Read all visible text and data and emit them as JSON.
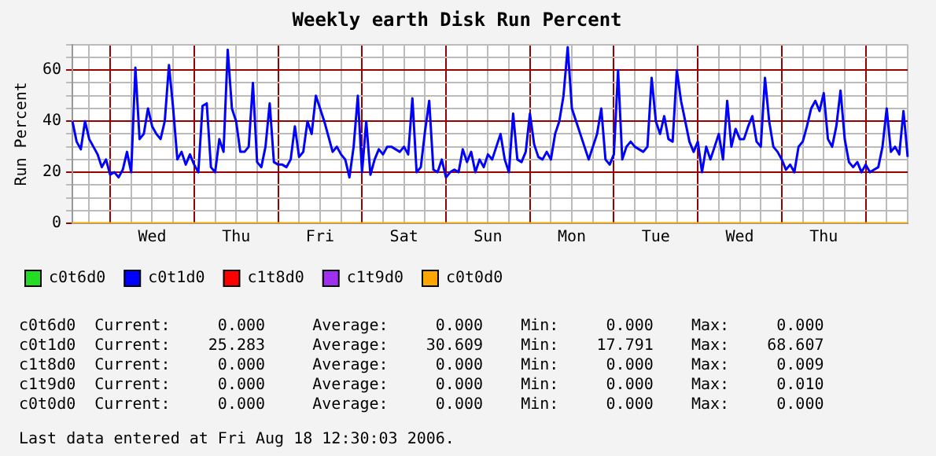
{
  "chart_data": {
    "type": "line",
    "title": "Weekly earth Disk Run Percent",
    "ylabel": "Run Percent",
    "categories": [
      null,
      null,
      null,
      null,
      null,
      null,
      null,
      null,
      null,
      null,
      null,
      null,
      null,
      null,
      null,
      null,
      null,
      null,
      null,
      "Wed",
      null,
      null,
      null,
      null,
      null,
      null,
      null,
      null,
      null,
      null,
      null,
      null,
      null,
      null,
      null,
      null,
      null,
      null,
      null,
      "Thu",
      null,
      null,
      null,
      null,
      null,
      null,
      null,
      null,
      null,
      null,
      null,
      null,
      null,
      null,
      null,
      null,
      null,
      null,
      null,
      "Fri",
      null,
      null,
      null,
      null,
      null,
      null,
      null,
      null,
      null,
      null,
      null,
      null,
      null,
      null,
      null,
      null,
      null,
      null,
      null,
      "Sat",
      null,
      null,
      null,
      null,
      null,
      null,
      null,
      null,
      null,
      null,
      null,
      null,
      null,
      null,
      null,
      null,
      null,
      null,
      null,
      "Sun",
      null,
      null,
      null,
      null,
      null,
      null,
      null,
      null,
      null,
      null,
      null,
      null,
      null,
      null,
      null,
      null,
      null,
      null,
      null,
      "Mon",
      null,
      null,
      null,
      null,
      null,
      null,
      null,
      null,
      null,
      null,
      null,
      null,
      null,
      null,
      null,
      null,
      null,
      null,
      null,
      "Tue",
      null,
      null,
      null,
      null,
      null,
      null,
      null,
      null,
      null,
      null,
      null,
      null,
      null,
      null,
      null,
      null,
      null,
      null,
      null,
      "Wed",
      null,
      null,
      null,
      null,
      null,
      null,
      null,
      null,
      null,
      null,
      null,
      null,
      null,
      null,
      null,
      null,
      null,
      null,
      null,
      "Thu",
      null,
      null,
      null,
      null,
      null,
      null,
      null,
      null,
      null,
      null,
      null,
      null,
      null,
      null,
      null,
      null,
      null,
      null,
      null,
      null
    ],
    "ylim": [
      0,
      70
    ],
    "yticks": [
      0,
      {
        "value": 5,
        "label": null
      },
      {
        "value": 10,
        "label": null
      },
      {
        "value": 15,
        "label": null
      },
      20,
      {
        "value": 25,
        "label": null
      },
      {
        "value": 30,
        "label": null
      },
      {
        "value": 35,
        "label": null
      },
      40,
      {
        "value": 45,
        "label": null
      },
      {
        "value": 50,
        "label": null
      },
      {
        "value": 55,
        "label": null
      },
      60,
      {
        "value": 65,
        "label": null
      },
      {
        "value": 70,
        "label": null
      }
    ],
    "grid": true,
    "legend": "bottom",
    "marker": "none",
    "line_style": "solid",
    "series": [
      {
        "name": "c0t6d0",
        "color": "#22dd22",
        "values": [
          null,
          null,
          null,
          null,
          null,
          null,
          null,
          null,
          null,
          null,
          null,
          null,
          null,
          null,
          null,
          null,
          null,
          null,
          null,
          null,
          null,
          null,
          null,
          null,
          null,
          null,
          null,
          null,
          null,
          null,
          null,
          null,
          null,
          null,
          null,
          null,
          null,
          null,
          null,
          null,
          null,
          null,
          null,
          null,
          null,
          null,
          null,
          null,
          null,
          null,
          null,
          null,
          null,
          null,
          null,
          null,
          null,
          null,
          null,
          null,
          null,
          null,
          null,
          null,
          null,
          null,
          null,
          null,
          null,
          null,
          null,
          null,
          null,
          null,
          null,
          null,
          null,
          null,
          null,
          null,
          null,
          null,
          null,
          null,
          null,
          null,
          null,
          null,
          null,
          null,
          null,
          null,
          null,
          null,
          null,
          null,
          null,
          null,
          null,
          null,
          null,
          null,
          null,
          null,
          null,
          null,
          null,
          null,
          null,
          null,
          null,
          null,
          null,
          null,
          null,
          null,
          null,
          null,
          null,
          null,
          null,
          null,
          null,
          null,
          null,
          null,
          null,
          null,
          null,
          null,
          null,
          null,
          null,
          null,
          null,
          null,
          null,
          null,
          null,
          null,
          null,
          null,
          null,
          null,
          null,
          null,
          null,
          null,
          null,
          null,
          null,
          null,
          null,
          null,
          null,
          null,
          null,
          null,
          null,
          null,
          null,
          null,
          null,
          null,
          null,
          null,
          null,
          null,
          null,
          null,
          null,
          null,
          null,
          null,
          null,
          null,
          null,
          null,
          null,
          null,
          null,
          null,
          null,
          null,
          null,
          null,
          null,
          null,
          null,
          null,
          null,
          null,
          null,
          null,
          null,
          null,
          null,
          null,
          null,
          null
        ]
      },
      {
        "name": "c0t1d0",
        "color": "#0000ff",
        "values": [
          40,
          32,
          29,
          40,
          33,
          30,
          27,
          22,
          25,
          19,
          20,
          18,
          21,
          28,
          20,
          61,
          33,
          35,
          45,
          38,
          35,
          33,
          40,
          62,
          45,
          25,
          28,
          23,
          27,
          23,
          20,
          46,
          47,
          22,
          20,
          33,
          28,
          68,
          45,
          40,
          28,
          28,
          30,
          55,
          24,
          22,
          30,
          47,
          24,
          23,
          23,
          22,
          25,
          38,
          26,
          28,
          40,
          35,
          50,
          45,
          40,
          34,
          28,
          30,
          27,
          25,
          18,
          30,
          50,
          20,
          40,
          19,
          25,
          29,
          27,
          30,
          30,
          29,
          28,
          30,
          27,
          49,
          20,
          22,
          36,
          48,
          21,
          20,
          25,
          18,
          20,
          21,
          20,
          29,
          24,
          28,
          20,
          25,
          22,
          27,
          25,
          30,
          35,
          25,
          20,
          43,
          25,
          24,
          28,
          43,
          31,
          26,
          25,
          28,
          25,
          35,
          40,
          50,
          69,
          45,
          40,
          35,
          30,
          25,
          30,
          35,
          45,
          25,
          23,
          27,
          60,
          25,
          30,
          32,
          30,
          29,
          28,
          30,
          57,
          40,
          35,
          42,
          33,
          32,
          60,
          48,
          40,
          32,
          28,
          32,
          20,
          30,
          25,
          30,
          35,
          25,
          48,
          30,
          37,
          33,
          33,
          38,
          42,
          32,
          30,
          57,
          40,
          30,
          28,
          25,
          21,
          23,
          20,
          30,
          32,
          38,
          45,
          48,
          44,
          51,
          33,
          30,
          38,
          52,
          33,
          24,
          22,
          24,
          20,
          23,
          20,
          21,
          22,
          30,
          45,
          28,
          30,
          27,
          44,
          26
        ]
      },
      {
        "name": "c1t8d0",
        "color": "#ff0000",
        "values": [
          null,
          null,
          null,
          null,
          null,
          null,
          null,
          null,
          null,
          null,
          null,
          null,
          null,
          null,
          null,
          null,
          null,
          null,
          null,
          null,
          null,
          null,
          null,
          null,
          null,
          null,
          null,
          null,
          null,
          null,
          null,
          null,
          null,
          null,
          null,
          null,
          null,
          null,
          null,
          null,
          null,
          null,
          null,
          null,
          null,
          null,
          null,
          null,
          null,
          null,
          null,
          null,
          null,
          null,
          null,
          null,
          null,
          null,
          null,
          null,
          null,
          null,
          null,
          null,
          null,
          null,
          null,
          null,
          null,
          null,
          null,
          null,
          null,
          null,
          null,
          null,
          null,
          null,
          null,
          null,
          null,
          null,
          null,
          null,
          null,
          null,
          null,
          null,
          null,
          null,
          null,
          null,
          null,
          null,
          null,
          null,
          null,
          null,
          null,
          null,
          null,
          null,
          null,
          null,
          null,
          null,
          null,
          null,
          null,
          null,
          null,
          null,
          null,
          null,
          null,
          null,
          null,
          null,
          null,
          null,
          null,
          null,
          null,
          null,
          null,
          null,
          null,
          null,
          null,
          null,
          null,
          null,
          null,
          null,
          null,
          null,
          null,
          null,
          null,
          null,
          null,
          null,
          null,
          null,
          null,
          null,
          null,
          null,
          null,
          null,
          null,
          null,
          null,
          null,
          null,
          null,
          null,
          null,
          null,
          null,
          null,
          null,
          null,
          null,
          null,
          null,
          null,
          null,
          null,
          null,
          null,
          null,
          null,
          null,
          null,
          null,
          null,
          null,
          null,
          null,
          null,
          null,
          null,
          null,
          null,
          null,
          null,
          null,
          null,
          null,
          null,
          null,
          null,
          null,
          null,
          null,
          null,
          null,
          null,
          null
        ]
      },
      {
        "name": "c1t9d0",
        "color": "#a030f0",
        "values": [
          null,
          null,
          null,
          null,
          null,
          null,
          null,
          null,
          null,
          null,
          null,
          null,
          null,
          null,
          null,
          null,
          null,
          null,
          null,
          null,
          null,
          null,
          null,
          null,
          null,
          null,
          null,
          null,
          null,
          null,
          null,
          null,
          null,
          null,
          null,
          null,
          null,
          null,
          null,
          null,
          null,
          null,
          null,
          null,
          null,
          null,
          null,
          null,
          null,
          null,
          null,
          null,
          null,
          null,
          null,
          null,
          null,
          null,
          null,
          null,
          null,
          null,
          null,
          null,
          null,
          null,
          null,
          null,
          null,
          null,
          null,
          null,
          null,
          null,
          null,
          null,
          null,
          null,
          null,
          null,
          null,
          null,
          null,
          null,
          null,
          null,
          null,
          null,
          null,
          null,
          null,
          null,
          null,
          null,
          null,
          null,
          null,
          null,
          null,
          null,
          null,
          null,
          null,
          null,
          null,
          null,
          null,
          null,
          null,
          null,
          null,
          null,
          null,
          null,
          null,
          null,
          null,
          null,
          null,
          null,
          null,
          null,
          null,
          null,
          null,
          null,
          null,
          null,
          null,
          null,
          null,
          null,
          null,
          null,
          null,
          null,
          null,
          null,
          null,
          null,
          null,
          null,
          null,
          null,
          null,
          null,
          null,
          null,
          null,
          null,
          null,
          null,
          null,
          null,
          null,
          null,
          null,
          null,
          null,
          null,
          null,
          null,
          null,
          null,
          null,
          null,
          null,
          null,
          null,
          null,
          null,
          null,
          null,
          null,
          null,
          null,
          null,
          null,
          null,
          null,
          null,
          null,
          null,
          null,
          null,
          null,
          null,
          null,
          null,
          null,
          null,
          null,
          null,
          null,
          null,
          null,
          null,
          null,
          null,
          null
        ]
      },
      {
        "name": "c0t0d0",
        "color": "#ffa500",
        "values": [
          0,
          0,
          0,
          0,
          0,
          0,
          0,
          0,
          0,
          0,
          0,
          0,
          0,
          0,
          0,
          0,
          0,
          0,
          0,
          0,
          0,
          0,
          0,
          0,
          0,
          0,
          0,
          0,
          0,
          0,
          0,
          0,
          0,
          0,
          0,
          0,
          0,
          0,
          0,
          0,
          0,
          0,
          0,
          0,
          0,
          0,
          0,
          0,
          0,
          0,
          0,
          0,
          0,
          0,
          0,
          0,
          0,
          0,
          0,
          0,
          0,
          0,
          0,
          0,
          0,
          0,
          0,
          0,
          0,
          0,
          0,
          0,
          0,
          0,
          0,
          0,
          0,
          0,
          0,
          0,
          0,
          0,
          0,
          0,
          0,
          0,
          0,
          0,
          0,
          0,
          0,
          0,
          0,
          0,
          0,
          0,
          0,
          0,
          0,
          0,
          0,
          0,
          0,
          0,
          0,
          0,
          0,
          0,
          0,
          0,
          0,
          0,
          0,
          0,
          0,
          0,
          0,
          0,
          0,
          0,
          0,
          0,
          0,
          0,
          0,
          0,
          0,
          0,
          0,
          0,
          0,
          0,
          0,
          0,
          0,
          0,
          0,
          0,
          0,
          0,
          0,
          0,
          0,
          0,
          0,
          0,
          0,
          0,
          0,
          0,
          0,
          0,
          0,
          0,
          0,
          0,
          0,
          0,
          0,
          0,
          0,
          0,
          0,
          0,
          0,
          0,
          0,
          0,
          0,
          0,
          0,
          0,
          0,
          0,
          0,
          0,
          0,
          0,
          0,
          0,
          0,
          0,
          0,
          0,
          0,
          0,
          0,
          0,
          0,
          0,
          0,
          0,
          0,
          0,
          0,
          0,
          0,
          0,
          0,
          0
        ]
      }
    ],
    "annotations": [
      "c0t6d0  Current:     0.000     Average:     0.000    Min:     0.000    Max:     0.000",
      "c0t1d0  Current:    25.283     Average:    30.609    Min:    17.791    Max:    68.607",
      "c1t8d0  Current:     0.000     Average:     0.000    Min:     0.000    Max:     0.009",
      "c1t9d0  Current:     0.000     Average:     0.000    Min:     0.000    Max:     0.010",
      "c0t0d0  Current:     0.000     Average:     0.000    Min:     0.000    Max:     0.000",
      "Last data entered at Fri Aug 18 12:30:03 2006."
    ]
  }
}
